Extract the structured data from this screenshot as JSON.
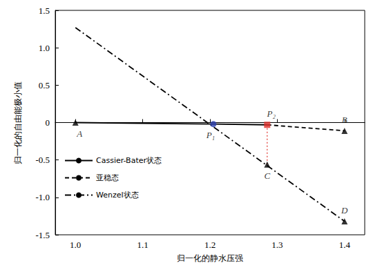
{
  "chart_data": {
    "type": "line",
    "x_label": "归一化的静水压强",
    "y_label": "归一化的自由能极小值",
    "xlim": [
      0.97,
      1.43
    ],
    "xticks": [
      {
        "value": 1,
        "label": "1.0"
      },
      1.1,
      1.2,
      1.3,
      1.4
    ],
    "ylim": [
      -1.5,
      1.5
    ],
    "yticks": [
      -1.5,
      {
        "value": -1,
        "label": "-1.0"
      },
      -0.5,
      0,
      0.5,
      {
        "value": 1,
        "label": "1.0"
      },
      1.5
    ],
    "grid": false,
    "legend": "lower left",
    "series": [
      {
        "name": "Cassier-Bater状态",
        "color": "#000000",
        "line_style": "solid",
        "x": [
          1.0,
          1.205,
          1.285
        ],
        "values": [
          0.0,
          -0.02,
          -0.03
        ]
      },
      {
        "name": "亚稳态",
        "color": "#000000",
        "line_style": "dashed",
        "x": [
          1.285,
          1.4
        ],
        "values": [
          -0.03,
          -0.11
        ]
      },
      {
        "name": "Wenzel状态",
        "color": "#000000",
        "line_style": "dashdot",
        "x": [
          1.0,
          1.4
        ],
        "values": [
          1.27,
          -1.32
        ]
      }
    ],
    "connectors": [
      {
        "color": "#e0302a",
        "line_style": "dotted",
        "x": [
          1.285,
          1.285
        ],
        "values": [
          -0.03,
          -0.56
        ]
      }
    ],
    "annotations": [
      {
        "text": "A",
        "x": 1.0,
        "y": 0.0,
        "marker": "triangle",
        "color": "#000000"
      },
      {
        "text": "B",
        "x": 1.4,
        "y": -0.11,
        "marker": "triangle",
        "color": "#000000"
      },
      {
        "text": "C",
        "x": 1.285,
        "y": -0.56,
        "marker": "triangle",
        "color": "#000000"
      },
      {
        "text": "D",
        "x": 1.4,
        "y": -1.32,
        "marker": "triangle",
        "color": "#000000"
      },
      {
        "text": "P₁",
        "x": 1.205,
        "y": -0.02,
        "marker": "circle",
        "color": "#2a3fae"
      },
      {
        "text": "P₂",
        "x": 1.285,
        "y": -0.03,
        "marker": "square",
        "color": "#e0302a"
      }
    ]
  }
}
